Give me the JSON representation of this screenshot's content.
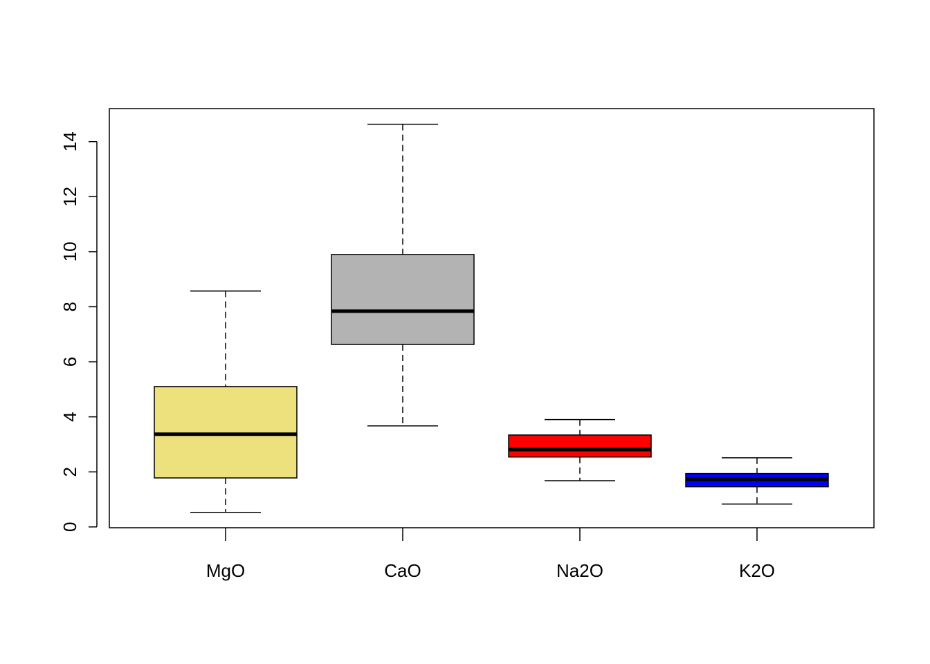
{
  "chart_data": {
    "type": "boxplot",
    "title": "",
    "xlabel": "",
    "ylabel": "",
    "ylim": [
      -0.03,
      15.2
    ],
    "yticks": [
      0,
      2,
      4,
      6,
      8,
      10,
      12,
      14
    ],
    "ytick_labels": [
      "0",
      "2",
      "4",
      "6",
      "8",
      "10",
      "12",
      "14"
    ],
    "categories": [
      "MgO",
      "CaO",
      "Na2O",
      "K2O"
    ],
    "boxes": [
      {
        "name": "MgO",
        "min": 0.53,
        "q1": 1.78,
        "median": 3.37,
        "q3": 5.1,
        "max": 8.57,
        "color": "#ECE17C"
      },
      {
        "name": "CaO",
        "min": 3.67,
        "q1": 6.63,
        "median": 7.84,
        "q3": 9.9,
        "max": 14.63,
        "color": "#B3B3B3"
      },
      {
        "name": "Na2O",
        "min": 1.68,
        "q1": 2.54,
        "median": 2.81,
        "q3": 3.34,
        "max": 3.9,
        "color": "#FF0000"
      },
      {
        "name": "K2O",
        "min": 0.83,
        "q1": 1.46,
        "median": 1.73,
        "q3": 1.94,
        "max": 2.51,
        "color": "#0000FF"
      }
    ],
    "grid": false,
    "legend": "none"
  }
}
